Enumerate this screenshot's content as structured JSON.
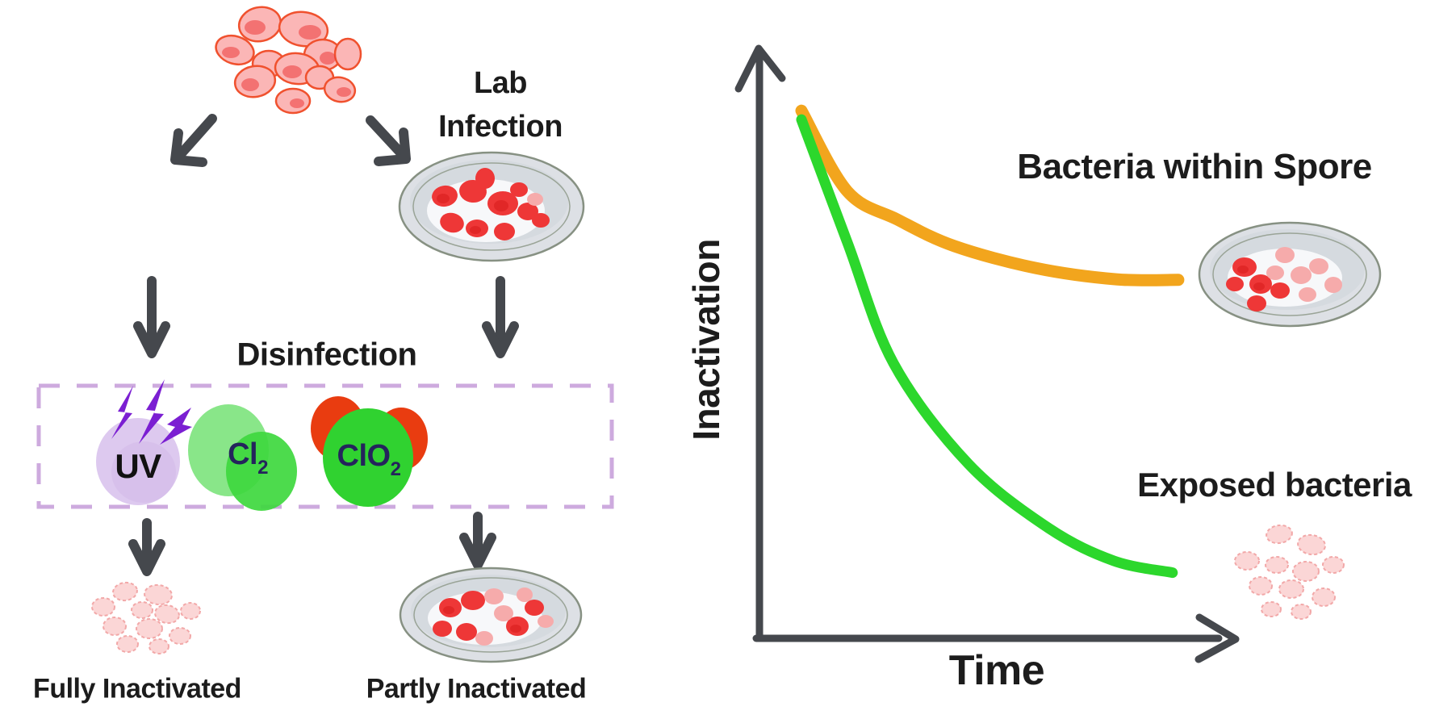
{
  "figure": {
    "left_panel": {
      "lab_infection": {
        "line1": "Lab",
        "line2": "Infection"
      },
      "disinfection_label": "Disinfection",
      "agents": {
        "uv": "UV",
        "cl": "Cl",
        "cl_sub": "2",
        "clo": "ClO",
        "clo_sub": "2"
      },
      "fully_inactivated": "Fully Inactivated",
      "partly_inactivated": "Partly Inactivated"
    },
    "right_panel": {
      "y_axis_label": "Inactivation",
      "x_axis_label": "Time",
      "curve1_label": "Bacteria within Spore",
      "curve2_label": "Exposed bacteria"
    }
  },
  "colors": {
    "text": "#1c1c1c",
    "arrow": "#45484d",
    "dashed_box": "#cdaade",
    "uv_fill": "#ddc9ef",
    "bolt_purple": "#7b1fd2",
    "cl2_green_light": "#6ce06c",
    "cl2_green": "#3ed83e",
    "clo2_green": "#30d230",
    "clo2_red": "#e93c10",
    "chem_text": "#24245c",
    "curve_orange": "#f2a51d",
    "curve_green": "#2cd72c",
    "cell_red": "#ee3737",
    "cell_red_dark": "#d91d1d",
    "cell_pink": "#f6abab",
    "cell_faded_fill": "#fbd6d6",
    "cell_faded_stroke": "#f2a8a8",
    "cell_top_fill": "#fbb6b6",
    "cell_top_stroke": "#f0512e",
    "spore_body": "#dde0e5",
    "spore_outline": "#879183"
  },
  "chart_data": {
    "type": "line",
    "title": "",
    "xlabel": "Time",
    "ylabel": "Inactivation",
    "x_ticks": [],
    "y_ticks": [],
    "grid": false,
    "legend_position": "annotations-right",
    "axis_style": "arrows, unlabeled qualitative axes",
    "series": [
      {
        "name": "Bacteria within Spore",
        "color": "#f2a51d",
        "width": 15,
        "shape": "shallow exponential decay levelling at high residual",
        "points": [
          [
            0.088,
            0.892
          ],
          [
            0.184,
            0.756
          ],
          [
            0.289,
            0.708
          ],
          [
            0.409,
            0.663
          ],
          [
            0.579,
            0.626
          ],
          [
            0.748,
            0.607
          ],
          [
            0.878,
            0.606
          ]
        ]
      },
      {
        "name": "Exposed bacteria",
        "color": "#2cd72c",
        "width": 13,
        "shape": "steep exponential decay to near-complete inactivation",
        "points": [
          [
            0.088,
            0.877
          ],
          [
            0.184,
            0.67
          ],
          [
            0.281,
            0.465
          ],
          [
            0.438,
            0.295
          ],
          [
            0.607,
            0.186
          ],
          [
            0.743,
            0.131
          ],
          [
            0.866,
            0.111
          ]
        ]
      }
    ]
  }
}
